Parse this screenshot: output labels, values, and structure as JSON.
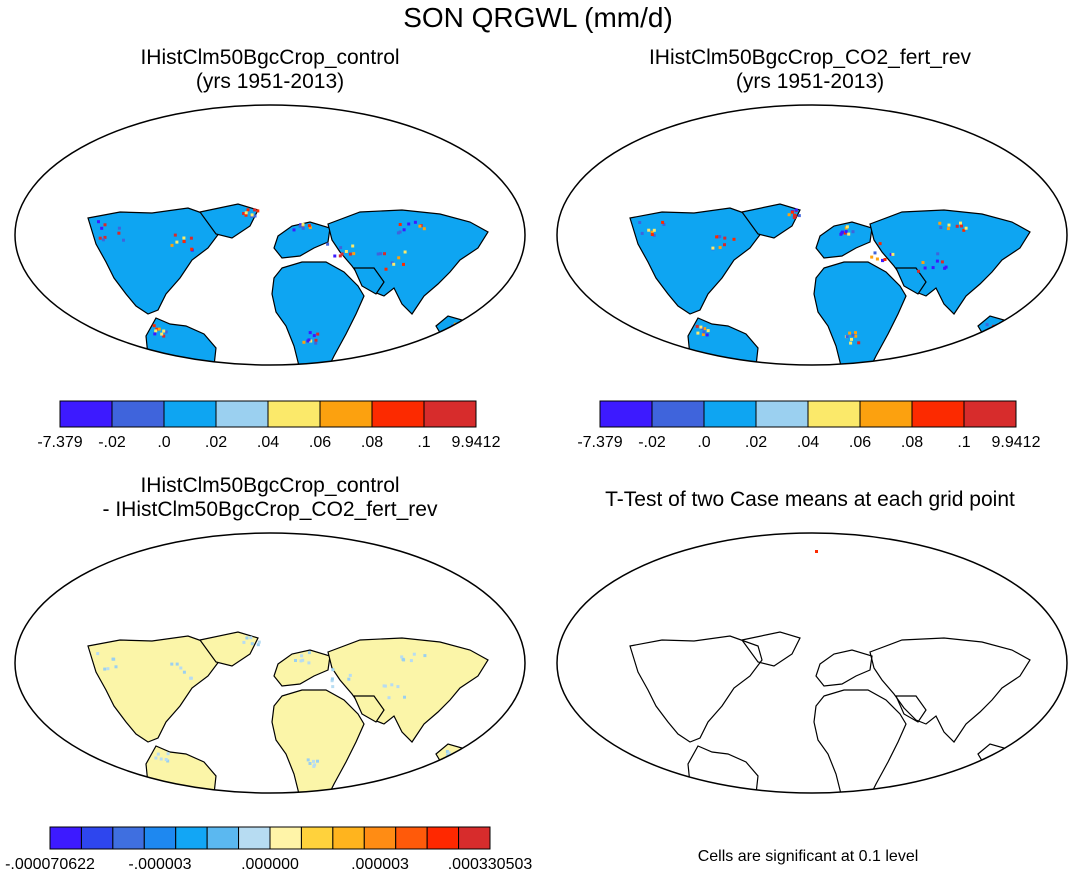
{
  "title": "SON QRGWL (mm/d)",
  "panels": {
    "top_left": {
      "line1": "IHistClm50BgcCrop_control",
      "line2": "(yrs 1951-2013)"
    },
    "top_right": {
      "line1": "IHistClm50BgcCrop_CO2_fert_rev",
      "line2": "(yrs 1951-2013)"
    },
    "bottom_left": {
      "line1": "IHistClm50BgcCrop_control",
      "line2": "- IHistClm50BgcCrop_CO2_fert_rev"
    },
    "bottom_right": {
      "line1": "T-Test of two Case means at each grid point"
    }
  },
  "colorbar_top": {
    "colors": [
      "#3d1aff",
      "#3f64dc",
      "#0ea5f2",
      "#9bd0f0",
      "#fbe96a",
      "#fca10f",
      "#fc2a00",
      "#d72c2c"
    ],
    "labels": [
      "-7.379",
      "-.02",
      ".0",
      ".02",
      ".04",
      ".06",
      ".08",
      ".1",
      "9.9412"
    ]
  },
  "colorbar_bottom": {
    "colors": [
      "#3d1aff",
      "#2e46ee",
      "#3f6fe0",
      "#1e88f0",
      "#12a6f5",
      "#5bb8f0",
      "#b7dcf2",
      "#fff4a8",
      "#ffd23c",
      "#ffb41e",
      "#ff8c14",
      "#ff5a0a",
      "#ff2800",
      "#d72c2c"
    ],
    "labels": [
      "-.000070622",
      "-.000003",
      ".000000",
      ".000003",
      ".000330503"
    ]
  },
  "significance_note": "Cells are significant at 0.1 level",
  "colors": {
    "land_top": "#0ea5f2",
    "land_diff": "#fbf5a8",
    "outline": "#000000"
  }
}
